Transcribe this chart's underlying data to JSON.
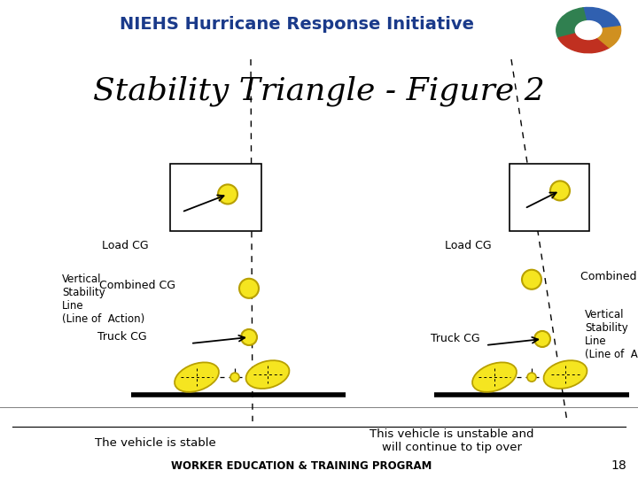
{
  "title": "Stability Triangle - Figure 2",
  "header_text": "NIEHS Hurricane Response Initiative",
  "header_bg": "#f5d590",
  "header_text_color": "#1a3a8a",
  "bg_color": "#ffffff",
  "footer_text": "WORKER EDUCATION & TRAINING PROGRAM",
  "footer_page": "18",
  "left_caption": "The vehicle is stable",
  "right_caption": "This vehicle is unstable and\nwill continue to tip over",
  "yellow": "#f5e520",
  "yellow_stroke": "#b8a000",
  "yellow_dark": "#d4c000"
}
